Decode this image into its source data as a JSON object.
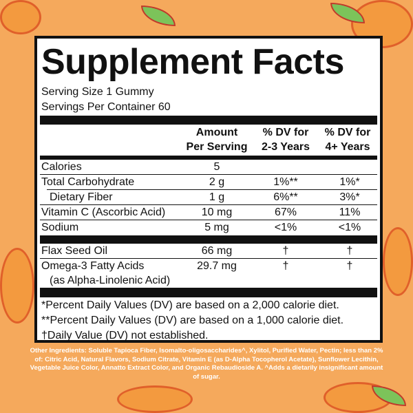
{
  "title": "Supplement Facts",
  "serving_size": "Serving Size 1 Gummy",
  "servings_per_container": "Servings Per Container 60",
  "headers": {
    "amount_1": "Amount",
    "amount_2": "Per Serving",
    "dv23_1": "% DV for",
    "dv23_2": "2-3 Years",
    "dv4_1": "% DV for",
    "dv4_2": "4+ Years"
  },
  "rows": [
    {
      "name": "Calories",
      "amount": "5",
      "dv23": "",
      "dv4": ""
    },
    {
      "name": "Total Carbohydrate",
      "amount": "2 g",
      "dv23": "1%**",
      "dv4": "1%*"
    },
    {
      "name": "Dietary Fiber",
      "amount": "1 g",
      "dv23": "6%**",
      "dv4": "3%*"
    },
    {
      "name": "Vitamin C (Ascorbic Acid)",
      "amount": "10 mg",
      "dv23": "67%",
      "dv4": "11%"
    },
    {
      "name": "Sodium",
      "amount": "5 mg",
      "dv23": "<1%",
      "dv4": "<1%"
    },
    {
      "name": "Flax Seed Oil",
      "amount": "66 mg",
      "dv23": "†",
      "dv4": "†"
    },
    {
      "name": "Omega-3 Fatty Acids",
      "name2": "(as Alpha-Linolenic Acid)",
      "amount": "29.7 mg",
      "dv23": "†",
      "dv4": "†"
    }
  ],
  "footnotes": [
    "*Percent Daily Values (DV) are based on a 2,000 calorie diet.",
    "**Percent Daily Values (DV) are based on a 1,000 calorie diet.",
    "†Daily Value (DV) not established."
  ],
  "other_ingredients": "Other Ingredients: Soluble Tapioca Fiber, Isomalto-oligosaccharides^, Xylitol, Purified Water, Pectin; less than 2% of: Citric Acid, Natural Flavors, Sodium Citrate, Vitamin E (as D-Alpha Tocopherol Acetate), Sunflower Lecithin, Vegetable Juice Color, Annatto Extract Color, and Organic Rebaudioside A. ^Adds a dietarily insignificant amount of sugar.",
  "colors": {
    "background": "#f5a95c",
    "panel": "#ffffff",
    "text": "#111111"
  }
}
